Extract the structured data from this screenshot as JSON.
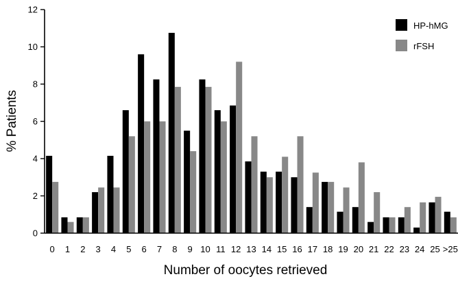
{
  "chart_data": {
    "type": "bar",
    "title": "",
    "xlabel": "Number of oocytes retrieved",
    "ylabel": "% Patients",
    "ylim": [
      0,
      12
    ],
    "yticks": [
      "0",
      "2",
      "4",
      "6",
      "8",
      "10",
      "12"
    ],
    "categories": [
      "0",
      "1",
      "2",
      "3",
      "4",
      "5",
      "6",
      "7",
      "8",
      "9",
      "10",
      "11",
      "12",
      "13",
      "14",
      "15",
      "16",
      "17",
      "18",
      "19",
      "20",
      "21",
      "22",
      "23",
      "24",
      "25",
      ">25"
    ],
    "legend_position": "top-right",
    "grid": false,
    "series": [
      {
        "name": "HP-hMG",
        "color": "#000000",
        "values": [
          4.15,
          0.85,
          0.85,
          2.2,
          4.15,
          6.6,
          9.6,
          8.25,
          10.75,
          5.5,
          8.25,
          6.6,
          6.85,
          3.85,
          3.3,
          3.3,
          3.0,
          1.4,
          2.75,
          1.15,
          1.4,
          0.6,
          0.85,
          0.85,
          0.3,
          1.65,
          1.15
        ]
      },
      {
        "name": "rFSH",
        "color": "#888888",
        "values": [
          2.75,
          0.6,
          0.85,
          2.45,
          2.45,
          5.2,
          6.0,
          6.0,
          7.85,
          4.4,
          7.85,
          6.0,
          9.2,
          5.2,
          3.0,
          4.1,
          5.2,
          3.25,
          2.75,
          2.45,
          3.8,
          2.2,
          0.85,
          1.4,
          1.65,
          1.95,
          0.85
        ]
      }
    ]
  }
}
